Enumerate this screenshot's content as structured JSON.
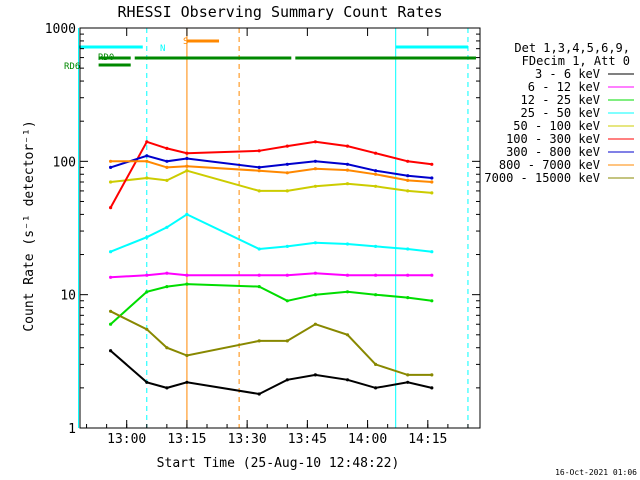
{
  "chart_data": {
    "type": "line",
    "title": "RHESSI Observing Summary Count Rates",
    "xlabel": "Start Time (25-Aug-10 12:48:22)",
    "ylabel": "Count Rate (s⁻¹ detector⁻¹)",
    "y_scale": "log",
    "ylim": [
      1,
      1000
    ],
    "xlim": [
      "12:48:22",
      "14:28:00"
    ],
    "x_ticks": [
      "13:00",
      "13:15",
      "13:30",
      "13:45",
      "14:00",
      "14:15"
    ],
    "y_ticks": [
      "1",
      "10",
      "100",
      "1000"
    ],
    "legend": {
      "header": [
        "Det 1,3,4,5,6,9,",
        "FDecim 1, Att 0"
      ],
      "placement": "right"
    },
    "series": [
      {
        "name": "3 - 6 keV",
        "color": "#000000",
        "x": [
          "12:56",
          "13:05",
          "13:10",
          "13:15",
          "13:33",
          "13:40",
          "13:47",
          "13:55",
          "14:02",
          "14:10",
          "14:16"
        ],
        "values": [
          3.8,
          2.2,
          2.0,
          2.2,
          1.8,
          2.3,
          2.5,
          2.3,
          2.0,
          2.2,
          2.0
        ]
      },
      {
        "name": "6 - 12 keV",
        "color": "#ff00ff",
        "x": [
          "12:56",
          "13:05",
          "13:10",
          "13:15",
          "13:33",
          "13:40",
          "13:47",
          "13:55",
          "14:02",
          "14:10",
          "14:16"
        ],
        "values": [
          13.5,
          14.0,
          14.5,
          14.0,
          14.0,
          14.0,
          14.5,
          14.0,
          14.0,
          14.0,
          14.0
        ]
      },
      {
        "name": "12 - 25 keV",
        "color": "#00dd00",
        "x": [
          "12:56",
          "13:05",
          "13:10",
          "13:15",
          "13:33",
          "13:40",
          "13:47",
          "13:55",
          "14:02",
          "14:10",
          "14:16"
        ],
        "values": [
          6.0,
          10.5,
          11.5,
          12.0,
          11.5,
          9.0,
          10.0,
          10.5,
          10.0,
          9.5,
          9.0
        ]
      },
      {
        "name": "25 - 50 keV",
        "color": "#00ffff",
        "x": [
          "12:56",
          "13:05",
          "13:10",
          "13:15",
          "13:33",
          "13:40",
          "13:47",
          "13:55",
          "14:02",
          "14:10",
          "14:16"
        ],
        "values": [
          21.0,
          27.0,
          32.0,
          40.0,
          22.0,
          23.0,
          24.5,
          24.0,
          23.0,
          22.0,
          21.0
        ]
      },
      {
        "name": "50 - 100 keV",
        "color": "#cccc00",
        "x": [
          "12:56",
          "13:05",
          "13:10",
          "13:15",
          "13:33",
          "13:40",
          "13:47",
          "13:55",
          "14:02",
          "14:10",
          "14:16"
        ],
        "values": [
          70,
          75,
          72,
          85,
          60,
          60,
          65,
          68,
          65,
          60,
          58
        ]
      },
      {
        "name": "100 - 300 keV",
        "color": "#ff0000",
        "x": [
          "12:56",
          "13:05",
          "13:10",
          "13:15",
          "13:33",
          "13:40",
          "13:47",
          "13:55",
          "14:02",
          "14:10",
          "14:16"
        ],
        "values": [
          45,
          140,
          125,
          115,
          120,
          130,
          140,
          130,
          115,
          100,
          95
        ]
      },
      {
        "name": "300 - 800 keV",
        "color": "#0000cc",
        "x": [
          "12:56",
          "13:05",
          "13:10",
          "13:15",
          "13:33",
          "13:40",
          "13:47",
          "13:55",
          "14:02",
          "14:10",
          "14:16"
        ],
        "values": [
          90,
          110,
          100,
          105,
          90,
          95,
          100,
          95,
          85,
          78,
          75
        ]
      },
      {
        "name": "800 - 7000 keV",
        "color": "#ff8800",
        "x": [
          "12:56",
          "13:05",
          "13:10",
          "13:15",
          "13:33",
          "13:40",
          "13:47",
          "13:55",
          "14:02",
          "14:10",
          "14:16"
        ],
        "values": [
          100,
          100,
          90,
          92,
          85,
          82,
          88,
          86,
          80,
          72,
          70
        ]
      },
      {
        "name": "7000 - 15000 keV",
        "color": "#888800",
        "x": [
          "12:56",
          "13:05",
          "13:10",
          "13:15",
          "13:33",
          "13:40",
          "13:47",
          "13:55",
          "14:02",
          "14:10",
          "14:16"
        ],
        "values": [
          7.5,
          5.5,
          4.0,
          3.5,
          4.5,
          4.5,
          6.0,
          5.0,
          3.0,
          2.5,
          2.5
        ]
      }
    ],
    "flag_bars": {
      "N": {
        "label": "N",
        "color": "#00ffff",
        "spans": [
          [
            "12:48",
            "13:04"
          ],
          [
            "14:07",
            "14:25"
          ]
        ]
      },
      "S": {
        "label": "S",
        "color": "#ff8800",
        "spans": [
          [
            "13:15",
            "13:23"
          ]
        ]
      },
      "RD0": {
        "label": "RD0",
        "color": "#008800",
        "spans": [
          [
            "12:53",
            "13:01"
          ],
          [
            "13:02",
            "13:41"
          ],
          [
            "13:42",
            "14:27"
          ]
        ]
      },
      "RD6": {
        "label": "RD6",
        "color": "#008800",
        "spans": [
          [
            "12:53",
            "13:01"
          ]
        ]
      }
    },
    "vertical_lines": [
      {
        "x": "12:48",
        "style": "solid",
        "color": "#00ffff"
      },
      {
        "x": "13:05",
        "style": "dashed",
        "color": "#00ffff"
      },
      {
        "x": "13:15",
        "style": "solid",
        "color": "#ff8800"
      },
      {
        "x": "13:28",
        "style": "dashed",
        "color": "#ff8800"
      },
      {
        "x": "14:07",
        "style": "solid",
        "color": "#00ffff"
      },
      {
        "x": "14:25",
        "style": "dashed",
        "color": "#00ffff"
      }
    ]
  },
  "footer": {
    "timestamp": "16-Oct-2021 01:06"
  }
}
